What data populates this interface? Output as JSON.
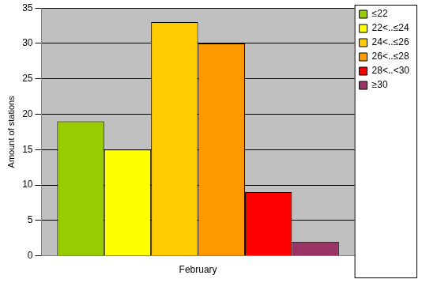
{
  "chart_data": {
    "type": "bar",
    "y_label": "Amount of stations",
    "categories": [
      "February"
    ],
    "series": [
      {
        "name": "≤22",
        "color": "#99cc00",
        "values": [
          19
        ]
      },
      {
        "name": "22<..≤24",
        "color": "#ffff00",
        "values": [
          15
        ]
      },
      {
        "name": "24<..≤26",
        "color": "#ffcc00",
        "values": [
          33
        ]
      },
      {
        "name": "26<..≤28",
        "color": "#ff9900",
        "values": [
          30
        ]
      },
      {
        "name": "28<..<30",
        "color": "#ff0000",
        "values": [
          9
        ]
      },
      {
        "name": "≥30",
        "color": "#993366",
        "values": [
          2
        ]
      }
    ],
    "ylim": [
      0,
      35
    ],
    "yticks": [
      0,
      5,
      10,
      15,
      20,
      25,
      30,
      35
    ],
    "grid": true,
    "legend": "right"
  }
}
